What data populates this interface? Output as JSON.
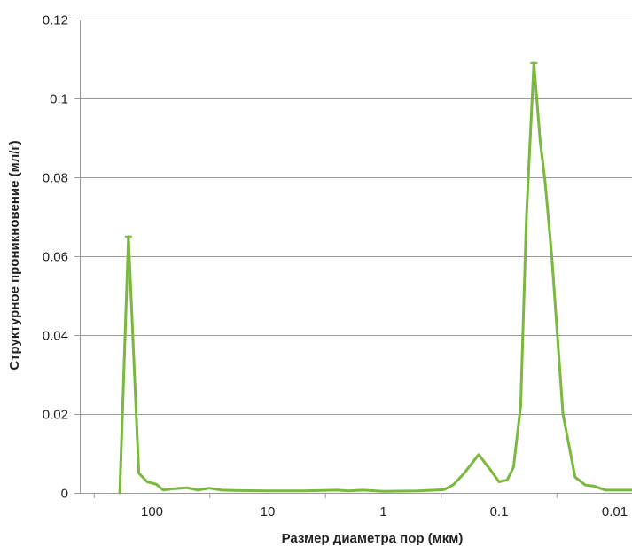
{
  "chart_data": {
    "type": "line",
    "xlabel": "Размер диаметра пор (мкм)",
    "ylabel": "Структурное проникновение (мл/г)",
    "x_scale": "log",
    "x_reversed": true,
    "xlim": [
      300,
      0.007
    ],
    "ylim": [
      0,
      0.12
    ],
    "y_ticks": [
      0,
      0.02,
      0.04,
      0.06,
      0.08,
      0.1,
      0.12
    ],
    "y_tick_labels": [
      "0",
      "0.02",
      "0.04",
      "0.06",
      "0.08",
      "0.1",
      "0.12"
    ],
    "x_ticks": [
      100,
      10,
      1,
      0.1,
      0.01
    ],
    "x_tick_labels": [
      "100",
      "10",
      "1",
      "0.1",
      "0.01"
    ],
    "grid": "horizontal",
    "line_color": "#7ab83e",
    "grid_color": "#9a9a9a",
    "series": [
      {
        "x": [
          190,
          160,
          130,
          110,
          92,
          80,
          68,
          50,
          40,
          32,
          25,
          20,
          10,
          5,
          2.5,
          2,
          1.5,
          1,
          0.5,
          0.3,
          0.25,
          0.2,
          0.15,
          0.12,
          0.1,
          0.085,
          0.075,
          0.065,
          0.058,
          0.05,
          0.044,
          0.04,
          0.035,
          0.028,
          0.022,
          0.018,
          0.015,
          0.012,
          0.01,
          0.008,
          0.007
        ],
        "y": [
          0,
          0.065,
          0.005,
          0.0028,
          0.0022,
          0.0007,
          0.001,
          0.0013,
          0.0007,
          0.0012,
          0.0007,
          0.0006,
          0.0005,
          0.0005,
          0.0007,
          0.0005,
          0.0007,
          0.0004,
          0.0005,
          0.0008,
          0.002,
          0.005,
          0.0097,
          0.006,
          0.0028,
          0.0033,
          0.0065,
          0.022,
          0.07,
          0.109,
          0.089,
          0.079,
          0.06,
          0.02,
          0.004,
          0.002,
          0.0017,
          0.0007,
          0.0007,
          0.0007,
          0.0007
        ]
      }
    ],
    "error_caps": [
      {
        "x": 160,
        "y": 0.065
      },
      {
        "x": 0.05,
        "y": 0.109
      }
    ]
  }
}
